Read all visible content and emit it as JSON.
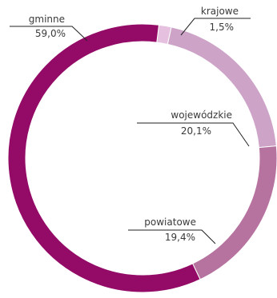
{
  "chart_data": {
    "type": "pie",
    "donut": true,
    "title": "",
    "categories": [
      "krajowe",
      "wojewódzkie",
      "powiatowe",
      "gminne"
    ],
    "values": [
      1.5,
      20.1,
      19.4,
      59.0
    ],
    "value_labels": [
      "1,5%",
      "20,1%",
      "19,4%",
      "59,0%"
    ],
    "colors": [
      "#e5c0df",
      "#cda3c8",
      "#b7739f",
      "#930b66"
    ],
    "start_angle_deg": 7
  }
}
